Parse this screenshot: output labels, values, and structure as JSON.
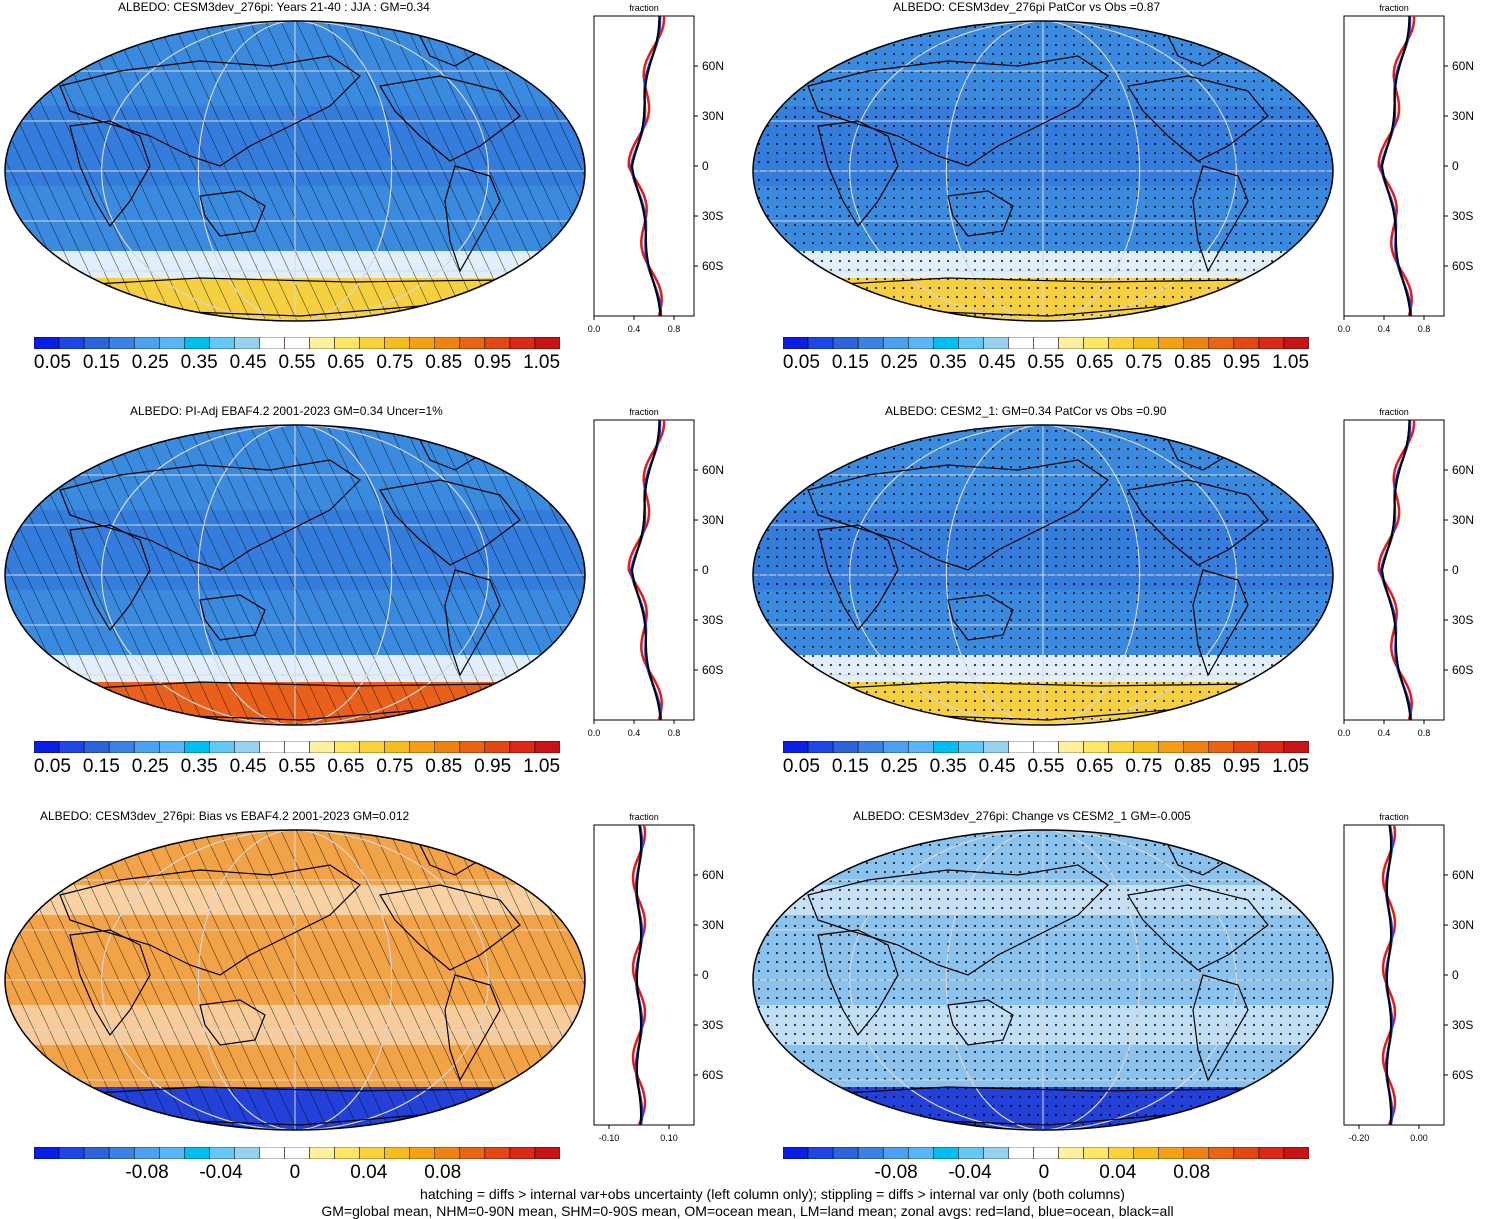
{
  "panels": [
    {
      "title": "ALBEDO: CESM3dev_276pi: Years 21-40 : JJA : GM=0.34",
      "fill": "blue",
      "bottom": "yellow",
      "pattern": "hatch",
      "scale": "abs",
      "zonal_ticks": [
        "0.0",
        "0.4",
        "0.8"
      ]
    },
    {
      "title": "ALBEDO: CESM3dev_276pi PatCor vs Obs =0.87",
      "fill": "blue",
      "bottom": "yellow",
      "pattern": "stipple",
      "scale": "abs",
      "zonal_ticks": [
        "0.0",
        "0.4",
        "0.8"
      ]
    },
    {
      "title": "ALBEDO: PI-Adj EBAF4.2 2001-2023 GM=0.34 Uncer=1%",
      "fill": "blue",
      "bottom": "orange",
      "pattern": "hatch",
      "scale": "abs",
      "zonal_ticks": [
        "0.0",
        "0.4",
        "0.8"
      ]
    },
    {
      "title": "ALBEDO: CESM2_1: GM=0.34 PatCor vs Obs =0.90",
      "fill": "blue",
      "bottom": "yellow",
      "pattern": "stipple",
      "scale": "abs",
      "zonal_ticks": [
        "0.0",
        "0.4",
        "0.8"
      ]
    },
    {
      "title": "ALBEDO: CESM3dev_276pi: Bias vs EBAF4.2 2001-2023 GM=0.012",
      "fill": "orange",
      "bottom": "blue",
      "pattern": "hatch",
      "scale": "diff",
      "zonal_ticks": [
        "-0.10",
        "0.10"
      ]
    },
    {
      "title": "ALBEDO: CESM3dev_276pi: Change vs CESM2_1 GM=-0.005",
      "fill": "lightblue",
      "bottom": "blue",
      "pattern": "stipple",
      "scale": "diff",
      "zonal_ticks": [
        "-0.20",
        "0.00"
      ]
    }
  ],
  "zonal": {
    "header": "fraction",
    "lat_labels": [
      "60N",
      "30N",
      "0",
      "30S",
      "60S"
    ]
  },
  "colorbars": {
    "abs_labels": [
      "0.05",
      "0.15",
      "0.25",
      "0.35",
      "0.45",
      "0.55",
      "0.65",
      "0.75",
      "0.85",
      "0.95",
      "1.05"
    ],
    "diff_labels": [
      "-0.08",
      "-0.04",
      "0",
      "0.04",
      "0.08"
    ],
    "colors": [
      "#0a1ee6",
      "#1e46e6",
      "#2d64dc",
      "#3c82e6",
      "#4ba0f0",
      "#5ab4fa",
      "#00bef0",
      "#64c8f5",
      "#96d2f0",
      "#ffffff",
      "#ffffff",
      "#fff0a0",
      "#ffe664",
      "#fad23c",
      "#f5be1e",
      "#f5a014",
      "#f08214",
      "#eb6414",
      "#e64614",
      "#dc2814",
      "#c81414"
    ]
  },
  "footer": {
    "line1": "hatching = diffs > internal var+obs uncertainty (left column only); stippling = diffs > internal var only (both columns)",
    "line2": "GM=global mean, NHM=0-90N mean, SHM=0-90S mean, OM=ocean mean, LM=land mean; zonal avgs: red=land, blue=ocean, black=all"
  }
}
